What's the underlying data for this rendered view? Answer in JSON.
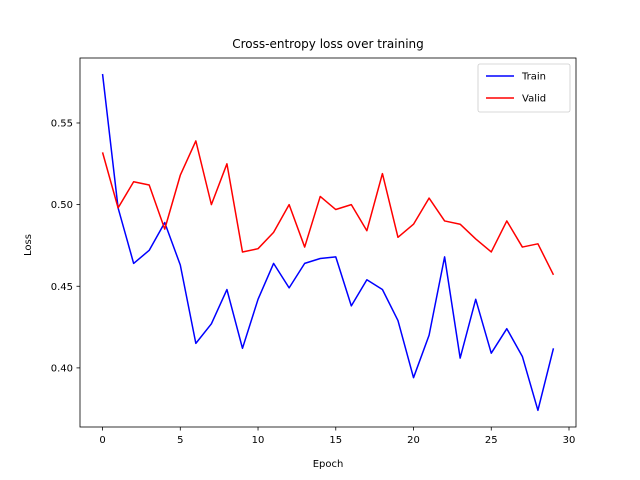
{
  "chart_data": {
    "type": "line",
    "title": "Cross-entropy loss over training",
    "xlabel": "Epoch",
    "ylabel": "Loss",
    "xlim": [
      -1.45,
      30.45
    ],
    "ylim": [
      0.3638,
      0.5898
    ],
    "xticks": [
      0,
      5,
      10,
      15,
      20,
      25,
      30
    ],
    "yticks": [
      0.4,
      0.45,
      0.5,
      0.55
    ],
    "ytick_labels": [
      "0.40",
      "0.45",
      "0.50",
      "0.55"
    ],
    "grid": false,
    "legend_position": "top-right",
    "x": [
      0,
      1,
      2,
      3,
      4,
      5,
      6,
      7,
      8,
      9,
      10,
      11,
      12,
      13,
      14,
      15,
      16,
      17,
      18,
      19,
      20,
      21,
      22,
      23,
      24,
      25,
      26,
      27,
      28,
      29
    ],
    "series": [
      {
        "name": "Train",
        "color": "#0000ff",
        "values": [
          0.58,
          0.498,
          0.464,
          0.472,
          0.489,
          0.463,
          0.415,
          0.427,
          0.448,
          0.412,
          0.442,
          0.464,
          0.449,
          0.464,
          0.467,
          0.468,
          0.438,
          0.454,
          0.448,
          0.429,
          0.394,
          0.42,
          0.468,
          0.406,
          0.442,
          0.409,
          0.424,
          0.407,
          0.374,
          0.412
        ]
      },
      {
        "name": "Valid",
        "color": "#ff0000",
        "values": [
          0.532,
          0.498,
          0.514,
          0.512,
          0.485,
          0.518,
          0.539,
          0.5,
          0.525,
          0.471,
          0.473,
          0.483,
          0.5,
          0.474,
          0.505,
          0.497,
          0.5,
          0.484,
          0.519,
          0.48,
          0.488,
          0.504,
          0.49,
          0.488,
          0.479,
          0.471,
          0.49,
          0.474,
          0.476,
          0.457
        ]
      }
    ]
  }
}
